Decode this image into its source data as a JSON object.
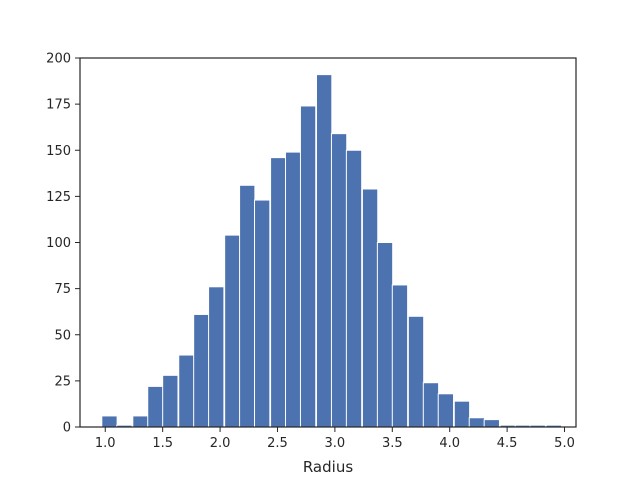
{
  "chart_data": {
    "type": "bar",
    "xlabel": "Radius",
    "ylabel": "",
    "title": "",
    "xlim": [
      0.78,
      5.1
    ],
    "ylim": [
      0,
      200
    ],
    "grid": false,
    "bar_color": "#4c72b0",
    "bin_width": 0.1333,
    "bins": [
      {
        "left": 0.97,
        "count": 6
      },
      {
        "left": 1.1,
        "count": 1
      },
      {
        "left": 1.24,
        "count": 6
      },
      {
        "left": 1.37,
        "count": 22
      },
      {
        "left": 1.5,
        "count": 28
      },
      {
        "left": 1.64,
        "count": 39
      },
      {
        "left": 1.77,
        "count": 61
      },
      {
        "left": 1.9,
        "count": 76
      },
      {
        "left": 2.04,
        "count": 104
      },
      {
        "left": 2.17,
        "count": 131
      },
      {
        "left": 2.3,
        "count": 123
      },
      {
        "left": 2.44,
        "count": 146
      },
      {
        "left": 2.57,
        "count": 149
      },
      {
        "left": 2.7,
        "count": 174
      },
      {
        "left": 2.84,
        "count": 191
      },
      {
        "left": 2.97,
        "count": 159
      },
      {
        "left": 3.1,
        "count": 150
      },
      {
        "left": 3.24,
        "count": 129
      },
      {
        "left": 3.37,
        "count": 100
      },
      {
        "left": 3.5,
        "count": 77
      },
      {
        "left": 3.64,
        "count": 60
      },
      {
        "left": 3.77,
        "count": 24
      },
      {
        "left": 3.9,
        "count": 18
      },
      {
        "left": 4.04,
        "count": 14
      },
      {
        "left": 4.17,
        "count": 5
      },
      {
        "left": 4.3,
        "count": 4
      },
      {
        "left": 4.44,
        "count": 1
      },
      {
        "left": 4.57,
        "count": 1
      },
      {
        "left": 4.7,
        "count": 1
      },
      {
        "left": 4.84,
        "count": 1
      }
    ],
    "x_ticks": [
      "1.0",
      "1.5",
      "2.0",
      "2.5",
      "3.0",
      "3.5",
      "4.0",
      "4.5",
      "5.0"
    ],
    "y_ticks": [
      "0",
      "25",
      "50",
      "75",
      "100",
      "125",
      "150",
      "175",
      "200"
    ]
  }
}
